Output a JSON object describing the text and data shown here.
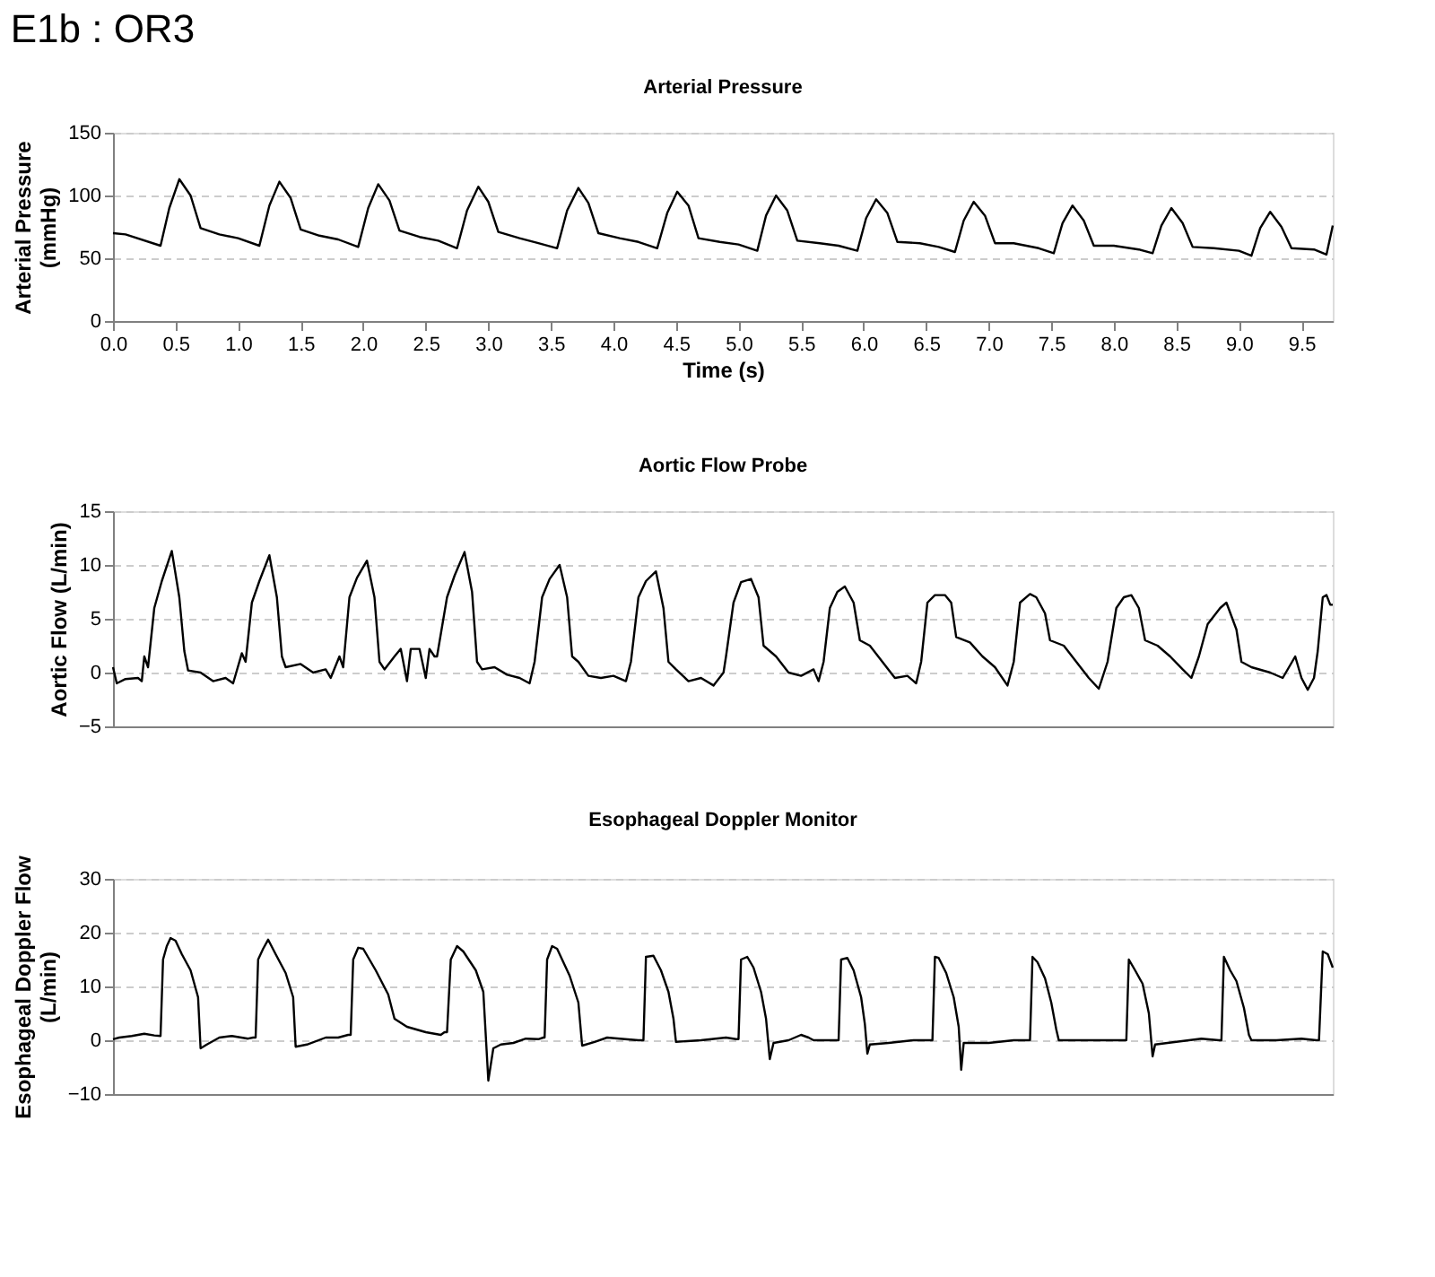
{
  "chart_data": [
    {
      "type": "line",
      "title": "E1b :  OR3",
      "subtitle": "Arterial Pressure",
      "xlabel": "Time (s)",
      "ylabel": "Arterial Pressure\n(mmHg)",
      "xlim": [
        0,
        9.75
      ],
      "ylim": [
        0,
        150
      ],
      "yticks": [
        0,
        50,
        100,
        150
      ],
      "grid": "y",
      "xticks": [
        {
          "value": 0,
          "label": "0.0"
        },
        0.5,
        {
          "value": 1,
          "label": "1.0"
        },
        1.5,
        {
          "value": 2,
          "label": "2.0"
        },
        2.5,
        {
          "value": 3,
          "label": "3.0"
        },
        3.5,
        {
          "value": 4,
          "label": "4.0"
        },
        4.5,
        {
          "value": 5,
          "label": "5.0"
        },
        5.5,
        {
          "value": 6,
          "label": "6.0"
        },
        6.5,
        {
          "value": 7,
          "label": "7.0"
        },
        7.5,
        {
          "value": 8,
          "label": "8.0"
        },
        8.5,
        {
          "value": 9,
          "label": "9.0"
        },
        9.5
      ],
      "series": [
        {
          "color": "#000000",
          "x": [
            0,
            0.1,
            0.38,
            0.45,
            0.53,
            0.62,
            0.7,
            0.85,
            1.0,
            1.17,
            1.25,
            1.33,
            1.42,
            1.5,
            1.65,
            1.8,
            1.96,
            2.04,
            2.12,
            2.21,
            2.29,
            2.45,
            2.6,
            2.75,
            2.83,
            2.92,
            3.0,
            3.08,
            3.25,
            3.4,
            3.55,
            3.63,
            3.72,
            3.8,
            3.88,
            4.05,
            4.2,
            4.35,
            4.43,
            4.51,
            4.6,
            4.68,
            4.85,
            5.0,
            5.15,
            5.22,
            5.3,
            5.39,
            5.47,
            5.65,
            5.8,
            5.95,
            6.02,
            6.1,
            6.19,
            6.27,
            6.45,
            6.6,
            6.73,
            6.8,
            6.88,
            6.97,
            7.05,
            7.2,
            7.4,
            7.52,
            7.59,
            7.67,
            7.76,
            7.84,
            8.0,
            8.2,
            8.31,
            8.38,
            8.46,
            8.55,
            8.63,
            8.8,
            9.0,
            9.1,
            9.17,
            9.25,
            9.34,
            9.42,
            9.6,
            9.7,
            9.75
          ],
          "values": [
            70,
            69,
            60,
            90,
            113,
            100,
            74,
            69,
            66,
            60,
            92,
            111,
            98,
            73,
            68,
            65,
            59,
            90,
            109,
            96,
            72,
            67,
            64,
            58,
            88,
            107,
            95,
            71,
            66,
            62,
            58,
            88,
            106,
            94,
            70,
            66,
            63,
            58,
            86,
            103,
            92,
            66,
            63,
            61,
            56,
            84,
            100,
            88,
            64,
            62,
            60,
            56,
            82,
            97,
            86,
            63,
            62,
            59,
            55,
            80,
            95,
            84,
            62,
            62,
            58,
            54,
            78,
            92,
            80,
            60,
            60,
            57,
            54,
            76,
            90,
            78,
            59,
            58,
            56,
            52,
            74,
            87,
            75,
            58,
            57,
            53,
            76
          ]
        }
      ]
    },
    {
      "type": "line",
      "title": "Aortic Flow Probe",
      "ylabel": "Aortic Flow  (L/min)",
      "xlim": [
        0,
        9.75
      ],
      "ylim": [
        -5,
        15
      ],
      "yticks": [
        -5,
        0,
        5,
        10,
        15
      ],
      "grid": "y",
      "tick_labels": "y",
      "series": [
        {
          "color": "#000000",
          "x": [
            0,
            0.03,
            0.1,
            0.2,
            0.23,
            0.25,
            0.28,
            0.33,
            0.39,
            0.47,
            0.53,
            0.57,
            0.6,
            0.7,
            0.8,
            0.9,
            0.96,
            1.03,
            1.06,
            1.11,
            1.17,
            1.25,
            1.31,
            1.35,
            1.38,
            1.5,
            1.6,
            1.7,
            1.74,
            1.81,
            1.84,
            1.89,
            1.95,
            2.03,
            2.09,
            2.13,
            2.17,
            2.25,
            2.3,
            2.35,
            2.38,
            2.45,
            2.5,
            2.53,
            2.57,
            2.59,
            2.67,
            2.73,
            2.81,
            2.87,
            2.91,
            2.95,
            3.05,
            3.15,
            3.25,
            3.33,
            3.37,
            3.43,
            3.49,
            3.57,
            3.63,
            3.67,
            3.72,
            3.8,
            3.9,
            4.0,
            4.1,
            4.14,
            4.2,
            4.26,
            4.34,
            4.4,
            4.44,
            4.5,
            4.6,
            4.7,
            4.8,
            4.88,
            4.9,
            4.96,
            5.02,
            5.1,
            5.16,
            5.2,
            5.3,
            5.4,
            5.5,
            5.6,
            5.64,
            5.68,
            5.73,
            5.79,
            5.85,
            5.92,
            5.97,
            6.05,
            6.15,
            6.25,
            6.35,
            6.42,
            6.46,
            6.51,
            6.57,
            6.65,
            6.7,
            6.74,
            6.85,
            6.95,
            7.05,
            7.15,
            7.2,
            7.25,
            7.33,
            7.38,
            7.45,
            7.49,
            7.6,
            7.7,
            7.8,
            7.88,
            7.95,
            8.02,
            8.08,
            8.14,
            8.2,
            8.25,
            8.35,
            8.45,
            8.55,
            8.62,
            8.68,
            8.75,
            8.85,
            8.9,
            8.98,
            9.02,
            9.1,
            9.25,
            9.35,
            9.45,
            9.5,
            9.55,
            9.6,
            9.63,
            9.67,
            9.7,
            9.73,
            9.75
          ],
          "values": [
            0.5,
            -1,
            -0.6,
            -0.5,
            -0.8,
            1.5,
            0.5,
            6,
            8.5,
            11.3,
            7,
            2,
            0.2,
            0,
            -0.8,
            -0.5,
            -1,
            1.8,
            1,
            6.5,
            8.5,
            10.9,
            7,
            1.5,
            0.5,
            0.8,
            0,
            0.3,
            -0.5,
            1.5,
            0.5,
            7,
            8.8,
            10.4,
            7,
            1,
            0.3,
            1.5,
            2.2,
            -0.8,
            2.2,
            2.2,
            -0.5,
            2.2,
            1.5,
            1.5,
            7,
            9,
            11.2,
            7.5,
            1,
            0.3,
            0.5,
            -0.2,
            -0.5,
            -1,
            1,
            7,
            8.7,
            10,
            7,
            1.5,
            1,
            -0.3,
            -0.5,
            -0.3,
            -0.8,
            1,
            7,
            8.5,
            9.4,
            6,
            1,
            0.3,
            -0.8,
            -0.5,
            -1.2,
            0,
            1.5,
            6.5,
            8.4,
            8.7,
            7,
            2.5,
            1.5,
            0,
            -0.3,
            0.3,
            -0.8,
            1,
            6,
            7.5,
            8,
            6.5,
            3,
            2.5,
            1,
            -0.5,
            -0.3,
            -1,
            1,
            6.5,
            7.2,
            7.2,
            6.5,
            3.3,
            2.8,
            1.5,
            0.5,
            -1.2,
            1,
            6.5,
            7.3,
            7,
            5.5,
            3,
            2.5,
            1,
            -0.5,
            -1.5,
            1,
            6,
            7,
            7.2,
            6,
            3,
            2.5,
            1.5,
            0.3,
            -0.5,
            1.5,
            4.5,
            6,
            6.5,
            4,
            1,
            0.5,
            0,
            -0.5,
            1.5,
            -0.5,
            -1.6,
            -0.5,
            2,
            7,
            7.2,
            6.3,
            6.3
          ]
        }
      ]
    },
    {
      "type": "line",
      "title": "Esophageal Doppler Monitor",
      "ylabel": "Esophageal Doppler Flow\n(L/min)",
      "xlim": [
        0,
        9.75
      ],
      "ylim": [
        -10,
        30
      ],
      "yticks": [
        -10,
        0,
        10,
        20,
        30
      ],
      "grid": "y",
      "tick_labels": "y",
      "series": [
        {
          "color": "#000000",
          "x": [
            0,
            0.05,
            0.15,
            0.25,
            0.33,
            0.38,
            0.4,
            0.43,
            0.46,
            0.5,
            0.55,
            0.62,
            0.68,
            0.7,
            0.75,
            0.85,
            0.95,
            1.08,
            1.12,
            1.14,
            1.16,
            1.2,
            1.24,
            1.3,
            1.38,
            1.44,
            1.46,
            1.55,
            1.7,
            1.8,
            1.88,
            1.9,
            1.92,
            1.96,
            2.0,
            2.1,
            2.2,
            2.25,
            2.35,
            2.5,
            2.62,
            2.65,
            2.67,
            2.7,
            2.75,
            2.8,
            2.9,
            2.96,
            3.0,
            3.04,
            3.1,
            3.2,
            3.3,
            3.4,
            3.44,
            3.45,
            3.47,
            3.51,
            3.55,
            3.65,
            3.72,
            3.75,
            3.85,
            3.95,
            4.05,
            4.2,
            4.24,
            4.26,
            4.32,
            4.38,
            4.44,
            4.48,
            4.5,
            4.7,
            4.9,
            4.98,
            5.0,
            5.02,
            5.07,
            5.12,
            5.18,
            5.22,
            5.25,
            5.28,
            5.4,
            5.5,
            5.56,
            5.6,
            5.78,
            5.8,
            5.82,
            5.87,
            5.92,
            5.98,
            6.01,
            6.03,
            6.05,
            6.2,
            6.4,
            6.52,
            6.55,
            6.57,
            6.6,
            6.66,
            6.72,
            6.76,
            6.78,
            6.8,
            7.0,
            7.2,
            7.3,
            7.33,
            7.35,
            7.39,
            7.45,
            7.5,
            7.54,
            7.56,
            7.8,
            8.08,
            8.1,
            8.12,
            8.17,
            8.23,
            8.28,
            8.31,
            8.33,
            8.5,
            8.7,
            8.84,
            8.86,
            8.88,
            8.93,
            8.98,
            9.04,
            9.08,
            9.1,
            9.3,
            9.5,
            9.62,
            9.64,
            9.67,
            9.71,
            9.75
          ],
          "values": [
            0.2,
            0.5,
            0.8,
            1.2,
            0.9,
            0.8,
            15,
            17.5,
            19,
            18.5,
            16,
            13,
            8,
            -1.5,
            -0.8,
            0.5,
            0.8,
            0.3,
            0.5,
            0.5,
            15,
            17,
            18.7,
            16,
            12.5,
            8,
            -1.2,
            -0.8,
            0.5,
            0.5,
            1,
            1,
            15,
            17.2,
            17,
            13,
            8.5,
            4,
            2.5,
            1.5,
            1,
            1.5,
            1.5,
            15,
            17.5,
            16.5,
            13,
            9,
            -7.5,
            -1.5,
            -0.8,
            -0.5,
            0.3,
            0.2,
            0.5,
            0.5,
            15,
            17.5,
            17,
            12,
            7,
            -1,
            -0.3,
            0.5,
            0.3,
            0,
            0,
            15.5,
            15.7,
            13,
            9,
            4,
            -0.3,
            0,
            0.5,
            0.2,
            0.2,
            15,
            15.5,
            13.5,
            9,
            4,
            -3.5,
            -0.5,
            0,
            1,
            0.5,
            0,
            0,
            0,
            15,
            15.3,
            13,
            8,
            3,
            -2.5,
            -0.8,
            -0.5,
            0,
            0,
            0,
            15.5,
            15.3,
            12.5,
            8,
            2.5,
            -5.5,
            -0.5,
            -0.5,
            0,
            0,
            0,
            15.5,
            14.5,
            11.5,
            7,
            2,
            0,
            0,
            0,
            0,
            15,
            13,
            10.5,
            5,
            -3,
            -0.8,
            -0.3,
            0.3,
            0,
            0,
            15.5,
            13,
            11,
            6,
            1,
            0,
            0,
            0.3,
            0,
            0,
            16.5,
            16,
            13.5
          ]
        }
      ]
    }
  ]
}
